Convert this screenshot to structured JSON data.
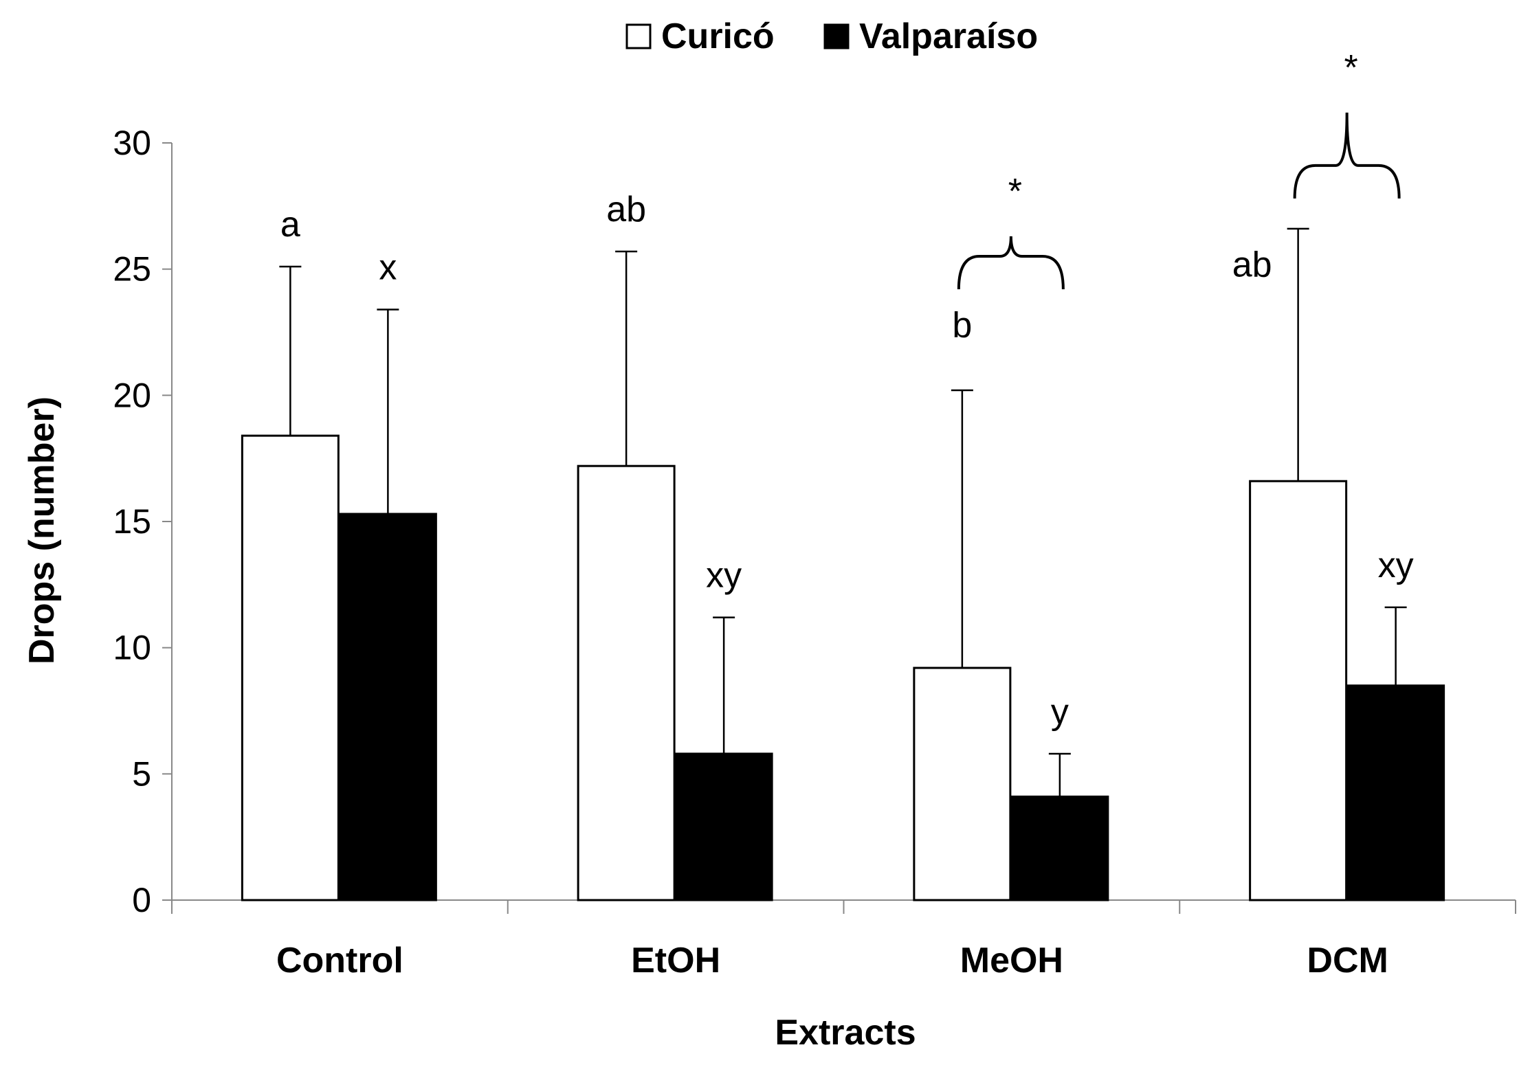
{
  "chart_data": {
    "type": "bar",
    "title": "",
    "xlabel": "Extracts",
    "ylabel": "Drops (number)",
    "ylim": [
      0,
      30
    ],
    "yticks": [
      0,
      5,
      10,
      15,
      20,
      25,
      30
    ],
    "grid": false,
    "legend_position": "top-center",
    "categories": [
      "Control",
      "EtOH",
      "MeOH",
      "DCM"
    ],
    "series": [
      {
        "name": "Curicó",
        "color": "#ffffff",
        "values": [
          18.4,
          17.2,
          9.2,
          16.6
        ],
        "error": [
          6.7,
          8.5,
          11.0,
          10.0
        ],
        "letters": [
          "a",
          "ab",
          "b",
          "ab"
        ]
      },
      {
        "name": "Valparaíso",
        "color": "#000000",
        "values": [
          15.3,
          5.8,
          4.1,
          8.5
        ],
        "error": [
          8.1,
          5.4,
          1.7,
          3.1
        ],
        "letters": [
          "x",
          "xy",
          "y",
          "xy"
        ]
      }
    ],
    "significance": [
      {
        "category": "MeOH",
        "marker": "*"
      },
      {
        "category": "DCM",
        "marker": "*"
      }
    ]
  }
}
